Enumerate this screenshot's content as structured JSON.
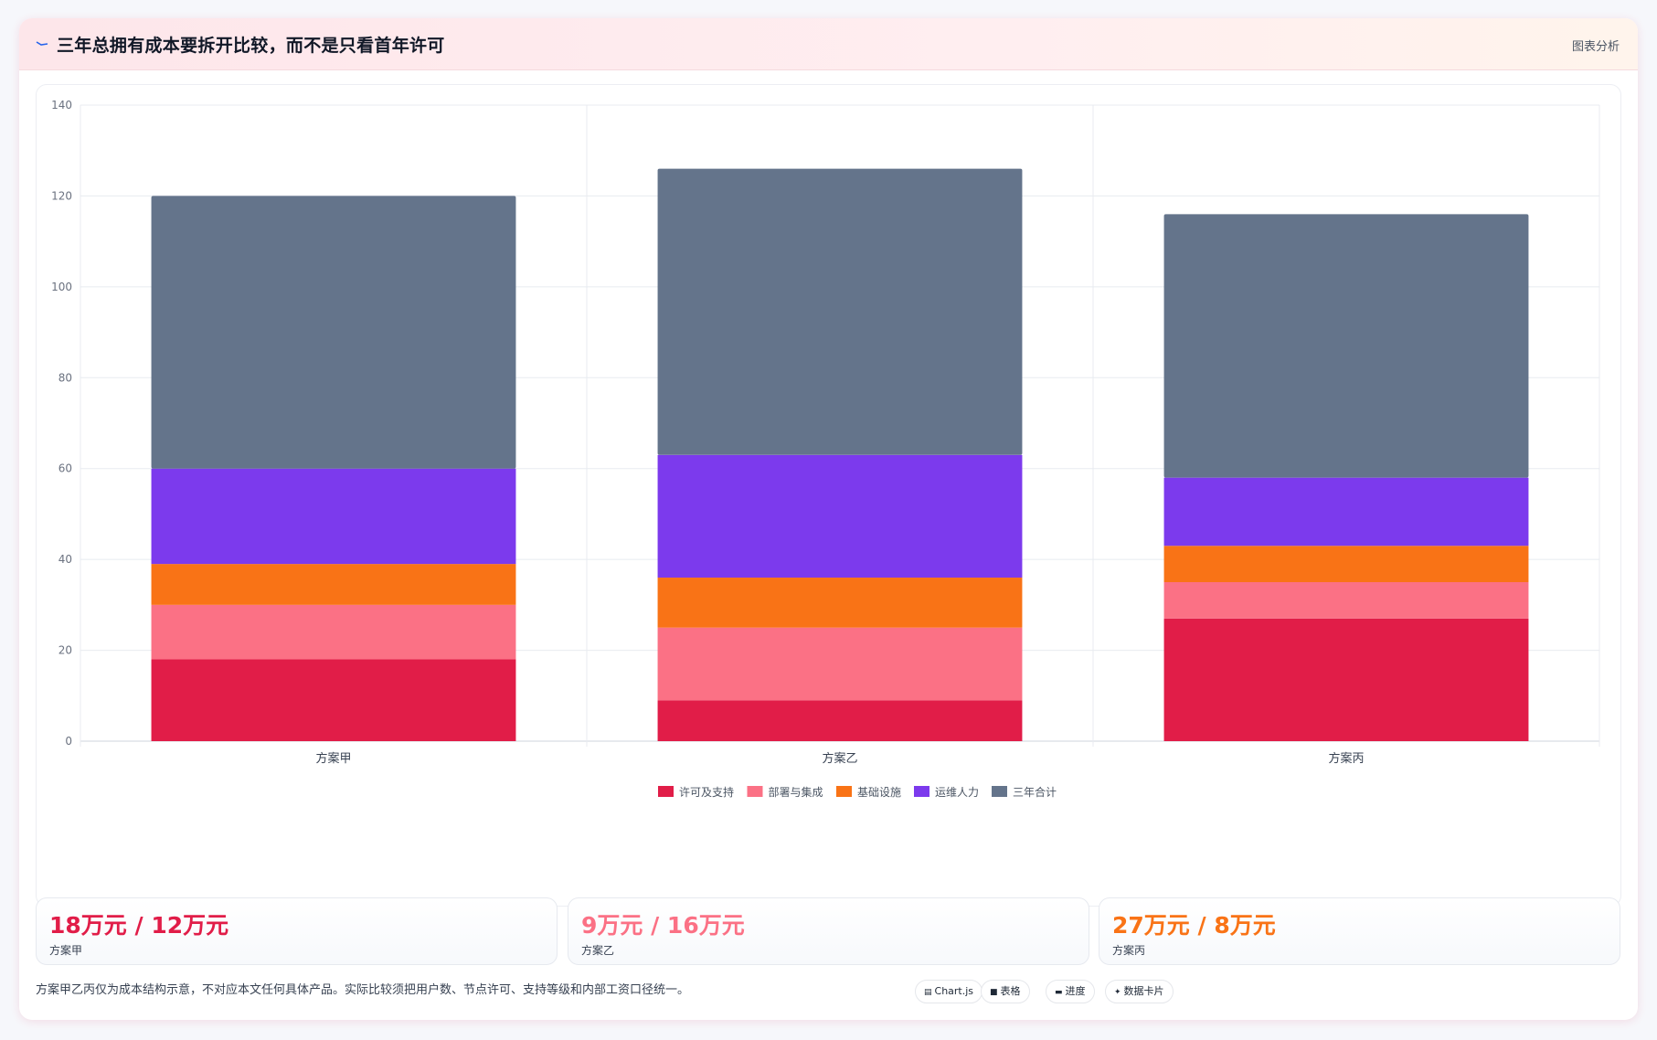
{
  "header": {
    "title": "三年总拥有成本要拆开比较，而不是只看首年许可",
    "action_label": "图表分析"
  },
  "colors": {
    "license": "#e11d48",
    "deploy": "#fb7185",
    "infra": "#f97316",
    "ops": "#7c3aed",
    "total": "#64748b"
  },
  "chart_data": {
    "type": "bar",
    "stacked": true,
    "categories": [
      "方案甲",
      "方案乙",
      "方案丙"
    ],
    "series": [
      {
        "name": "许可及支持",
        "color": "#e11d48",
        "values": [
          18,
          9,
          27
        ]
      },
      {
        "name": "部署与集成",
        "color": "#fb7185",
        "values": [
          12,
          16,
          8
        ]
      },
      {
        "name": "基础设施",
        "color": "#f97316",
        "values": [
          9,
          11,
          8
        ]
      },
      {
        "name": "运维人力",
        "color": "#7c3aed",
        "values": [
          21,
          27,
          15
        ]
      },
      {
        "name": "三年合计",
        "color": "#64748b",
        "values": [
          60,
          63,
          58
        ]
      }
    ],
    "ylim": [
      0,
      140
    ],
    "yticks": [
      0,
      20,
      40,
      60,
      80,
      100,
      120,
      140
    ],
    "grid": true,
    "legend": "bottom-center"
  },
  "stats": [
    {
      "value": "18万元 / 12万元",
      "name": "方案甲",
      "color": "#e11d48"
    },
    {
      "value": "9万元 / 16万元",
      "name": "方案乙",
      "color": "#fb7185"
    },
    {
      "value": "27万元 / 8万元",
      "name": "方案丙",
      "color": "#f97316"
    }
  ],
  "footnote": "方案甲乙丙仅为成本结构示意，不对应本文任何具体产品。实际比较须把用户数、节点许可、支持等级和内部工资口径统一。",
  "view_options": [
    {
      "icon": "▤",
      "label": "Chart.js"
    },
    {
      "icon": "■",
      "label": "表格"
    },
    {
      "icon": "▬",
      "label": "进度"
    },
    {
      "icon": "✦",
      "label": "数据卡片"
    }
  ]
}
